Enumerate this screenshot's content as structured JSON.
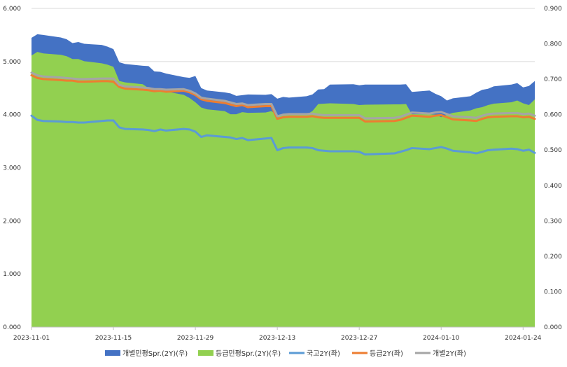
{
  "chart_data": {
    "type": "area",
    "x": [
      "2023-11-01",
      "2023-11-02",
      "2023-11-03",
      "2023-11-06",
      "2023-11-07",
      "2023-11-08",
      "2023-11-09",
      "2023-11-10",
      "2023-11-13",
      "2023-11-14",
      "2023-11-15",
      "2023-11-16",
      "2023-11-17",
      "2023-11-20",
      "2023-11-21",
      "2023-11-22",
      "2023-11-23",
      "2023-11-24",
      "2023-11-27",
      "2023-11-28",
      "2023-11-29",
      "2023-11-30",
      "2023-12-01",
      "2023-12-04",
      "2023-12-05",
      "2023-12-06",
      "2023-12-07",
      "2023-12-08",
      "2023-12-11",
      "2023-12-12",
      "2023-12-13",
      "2023-12-14",
      "2023-12-15",
      "2023-12-18",
      "2023-12-19",
      "2023-12-20",
      "2023-12-21",
      "2023-12-22",
      "2023-12-26",
      "2023-12-27",
      "2023-12-28",
      "2024-01-02",
      "2024-01-03",
      "2024-01-04",
      "2024-01-05",
      "2024-01-08",
      "2024-01-09",
      "2024-01-10",
      "2024-01-11",
      "2024-01-12",
      "2024-01-15",
      "2024-01-16",
      "2024-01-17",
      "2024-01-18",
      "2024-01-19",
      "2024-01-22",
      "2024-01-23",
      "2024-01-24",
      "2024-01-25",
      "2024-01-26"
    ],
    "x_tick_labels": [
      "2023-11-01",
      "2023-11-15",
      "2023-11-29",
      "2023-12-13",
      "2023-12-27",
      "2024-01-10",
      "2024-01-24"
    ],
    "y_left_ticks": [
      "0.000",
      "1.000",
      "2.000",
      "3.000",
      "4.000",
      "5.000",
      "6.000"
    ],
    "y_right_ticks": [
      "0.000",
      "0.100",
      "0.200",
      "0.300",
      "0.400",
      "0.500",
      "0.600",
      "0.700",
      "0.800",
      "0.900"
    ],
    "ylim_left": [
      0,
      6
    ],
    "ylim_right": [
      0,
      0.9
    ],
    "grid": "horizontal",
    "legend_position": "bottom",
    "series": [
      {
        "name": "개별민평Spr.(2Y)(우)",
        "kind": "area",
        "axis": "right",
        "color": "#4472C4",
        "values": [
          0.817,
          0.827,
          0.825,
          0.818,
          0.813,
          0.802,
          0.805,
          0.8,
          0.797,
          0.792,
          0.785,
          0.748,
          0.743,
          0.738,
          0.737,
          0.722,
          0.721,
          0.716,
          0.706,
          0.704,
          0.709,
          0.675,
          0.668,
          0.663,
          0.66,
          0.653,
          0.655,
          0.657,
          0.656,
          0.658,
          0.645,
          0.65,
          0.648,
          0.652,
          0.657,
          0.671,
          0.672,
          0.685,
          0.686,
          0.683,
          0.685,
          0.685,
          0.685,
          0.686,
          0.664,
          0.668,
          0.659,
          0.652,
          0.64,
          0.646,
          0.652,
          0.662,
          0.67,
          0.673,
          0.68,
          0.685,
          0.689,
          0.677,
          0.681,
          0.695
        ]
      },
      {
        "name": "등급민평Spr.(2Y)(우)",
        "kind": "area",
        "axis": "right",
        "color": "#92D050",
        "values": [
          0.767,
          0.777,
          0.773,
          0.769,
          0.765,
          0.757,
          0.757,
          0.751,
          0.745,
          0.741,
          0.735,
          0.695,
          0.691,
          0.686,
          0.675,
          0.667,
          0.665,
          0.665,
          0.656,
          0.647,
          0.635,
          0.62,
          0.615,
          0.61,
          0.601,
          0.601,
          0.607,
          0.605,
          0.606,
          0.61,
          0.599,
          0.6,
          0.599,
          0.6,
          0.61,
          0.63,
          0.631,
          0.632,
          0.63,
          0.627,
          0.628,
          0.629,
          0.629,
          0.63,
          0.601,
          0.601,
          0.6,
          0.593,
          0.6,
          0.605,
          0.612,
          0.618,
          0.621,
          0.627,
          0.631,
          0.635,
          0.64,
          0.632,
          0.627,
          0.643
        ]
      },
      {
        "name": "국고2Y(좌)",
        "kind": "line",
        "axis": "left",
        "color": "#5B9BD5",
        "values": [
          3.98,
          3.9,
          3.88,
          3.87,
          3.86,
          3.86,
          3.85,
          3.85,
          3.88,
          3.89,
          3.89,
          3.76,
          3.73,
          3.72,
          3.71,
          3.69,
          3.72,
          3.7,
          3.73,
          3.72,
          3.68,
          3.58,
          3.61,
          3.58,
          3.57,
          3.54,
          3.56,
          3.52,
          3.55,
          3.56,
          3.33,
          3.37,
          3.38,
          3.38,
          3.37,
          3.33,
          3.32,
          3.31,
          3.31,
          3.3,
          3.25,
          3.27,
          3.3,
          3.33,
          3.37,
          3.35,
          3.37,
          3.39,
          3.36,
          3.32,
          3.29,
          3.27,
          3.3,
          3.33,
          3.34,
          3.36,
          3.35,
          3.32,
          3.34,
          3.28
        ]
      },
      {
        "name": "등급2Y(좌)",
        "kind": "line",
        "axis": "left",
        "color": "#ED7D31",
        "values": [
          4.74,
          4.69,
          4.67,
          4.65,
          4.64,
          4.64,
          4.62,
          4.62,
          4.63,
          4.63,
          4.62,
          4.52,
          4.49,
          4.47,
          4.46,
          4.44,
          4.45,
          4.43,
          4.45,
          4.42,
          4.37,
          4.29,
          4.26,
          4.22,
          4.19,
          4.16,
          4.18,
          4.14,
          4.16,
          4.16,
          3.92,
          3.95,
          3.96,
          3.96,
          3.97,
          3.95,
          3.94,
          3.94,
          3.94,
          3.94,
          3.87,
          3.88,
          3.9,
          3.94,
          3.98,
          3.96,
          3.98,
          3.99,
          3.95,
          3.91,
          3.89,
          3.88,
          3.92,
          3.95,
          3.96,
          3.97,
          3.97,
          3.95,
          3.96,
          3.92
        ]
      },
      {
        "name": "개별2Y(좌)",
        "kind": "line",
        "axis": "left",
        "color": "#A5A5A5",
        "values": [
          4.79,
          4.74,
          4.72,
          4.7,
          4.69,
          4.68,
          4.67,
          4.67,
          4.68,
          4.68,
          4.68,
          4.56,
          4.53,
          4.51,
          4.5,
          4.48,
          4.48,
          4.47,
          4.48,
          4.45,
          4.4,
          4.32,
          4.3,
          4.26,
          4.23,
          4.2,
          4.21,
          4.18,
          4.2,
          4.2,
          3.97,
          4.0,
          4.01,
          4.01,
          4.02,
          4.0,
          3.99,
          3.99,
          3.99,
          3.99,
          3.93,
          3.94,
          3.96,
          4.0,
          4.04,
          4.02,
          4.04,
          4.05,
          4.01,
          3.97,
          3.95,
          3.94,
          3.98,
          4.01,
          4.02,
          4.03,
          4.03,
          4.01,
          4.02,
          3.98
        ]
      }
    ]
  }
}
